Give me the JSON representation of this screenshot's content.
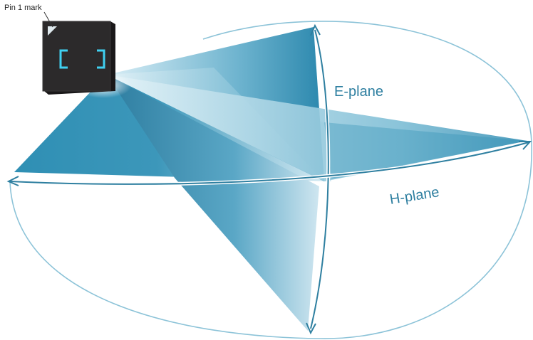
{
  "labels": {
    "pin_mark": "Pin 1 mark",
    "e_plane": "E-plane",
    "h_plane": "H-plane"
  },
  "colors": {
    "ellipse": "#7fb9d0",
    "beam_dark": "#2f8fb4",
    "beam_light": "#cfe8f2",
    "arrow": "#2e7fa0",
    "label": "#2e7fa0",
    "chip": "#2c2a2b",
    "chip_glyph": "#3fd0f0"
  },
  "icons": {
    "chip": "sensor-chip-icon",
    "pin_marker": "pin-1-triangle-icon"
  }
}
